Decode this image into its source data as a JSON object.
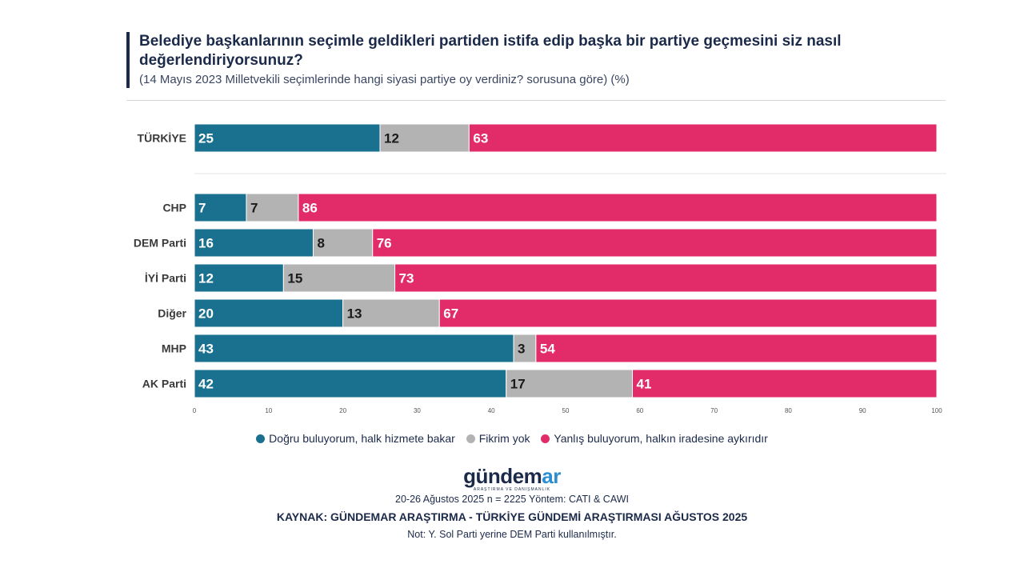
{
  "title": "Belediye başkanlarının seçimle geldikleri partiden istifa edip başka bir partiye geçmesini siz nasıl değerlendiriyorsunuz?",
  "subtitle": "(14 Mayıs 2023 Milletvekili seçimlerinde hangi siyasi partiye oy verdiniz? sorusuna göre) (%)",
  "colors": {
    "dogru": "#1a718f",
    "fikirYok": "#b3b3b3",
    "yanlis": "#e22c6a"
  },
  "chart_data": {
    "type": "bar",
    "orientation": "horizontal",
    "stacked": true,
    "categories": [
      "TÜRKİYE",
      "CHP",
      "DEM Parti",
      "İYİ Parti",
      "Diğer",
      "MHP",
      "AK Parti"
    ],
    "series": [
      {
        "name": "Doğru buluyorum, halk hizmete bakar",
        "values": [
          25,
          7,
          16,
          12,
          20,
          43,
          42
        ]
      },
      {
        "name": "Fikrim yok",
        "values": [
          12,
          7,
          8,
          15,
          13,
          3,
          17
        ]
      },
      {
        "name": "Yanlış buluyorum, halkın iradesine aykırıdır",
        "values": [
          63,
          86,
          76,
          73,
          67,
          54,
          41
        ]
      }
    ],
    "xlim": [
      0,
      100
    ],
    "xticks": [
      0,
      10,
      20,
      30,
      40,
      50,
      60,
      70,
      80,
      90,
      100
    ],
    "legend_position": "bottom"
  },
  "logo": {
    "main": "gündem",
    "accent": "ar",
    "tagline": "ARAŞTIRMA VE DANIŞMANLIK"
  },
  "footer": {
    "method": "20-26 Ağustos 2025 n = 2225 Yöntem: CATI & CAWI",
    "source": "KAYNAK: GÜNDEMAR ARAŞTIRMA - TÜRKİYE GÜNDEMİ ARAŞTIRMASI AĞUSTOS 2025",
    "note": "Not: Y. Sol Parti yerine DEM Parti kullanılmıştır."
  }
}
